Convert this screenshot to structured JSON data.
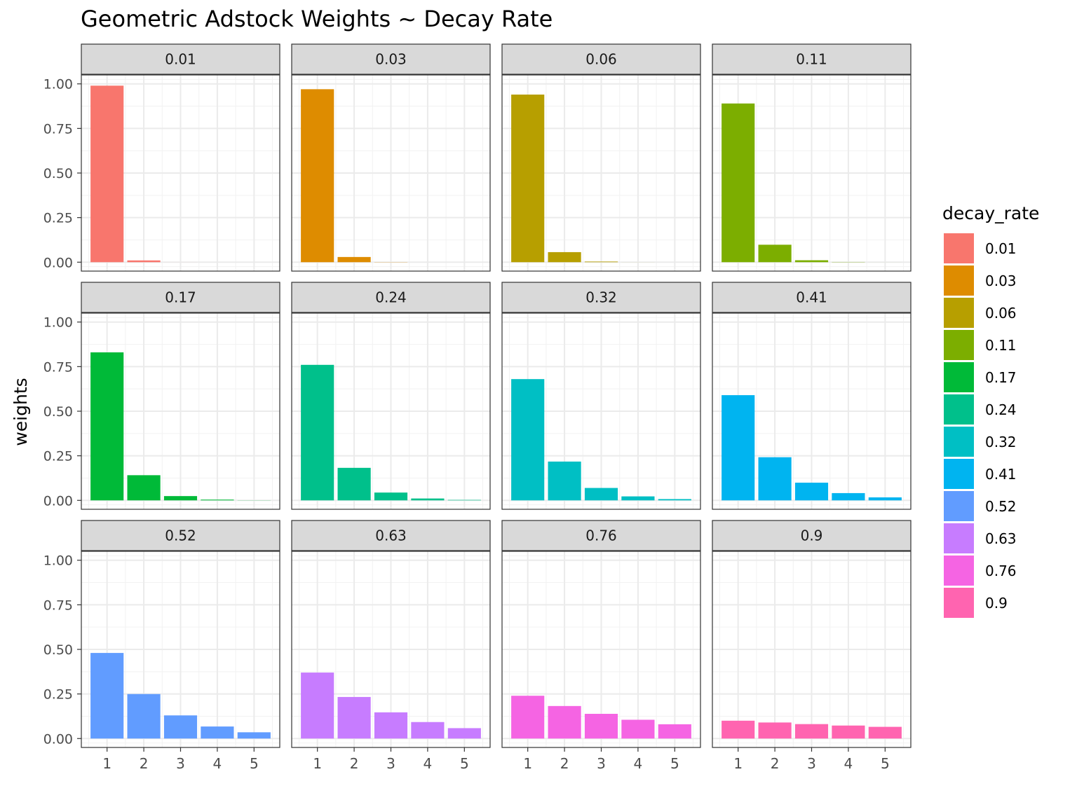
{
  "chart_data": {
    "type": "bar",
    "title": "Geometric Adstock Weights ~ Decay Rate",
    "xlabel": "",
    "ylabel": "weights",
    "categories": [
      "1",
      "2",
      "3",
      "4",
      "5"
    ],
    "ylim": [
      -0.05,
      1.05
    ],
    "yticks": [
      "0.00",
      "0.25",
      "0.50",
      "0.75",
      "1.00"
    ],
    "ytick_values": [
      0,
      0.25,
      0.5,
      0.75,
      1.0
    ],
    "grid": true,
    "legend": {
      "title": "decay_rate",
      "position": "right"
    },
    "facets": [
      {
        "label": "0.01",
        "color": "#F8766D",
        "values": [
          0.99,
          0.0099,
          0.0001,
          0.0,
          0.0
        ]
      },
      {
        "label": "0.03",
        "color": "#DE8C00",
        "values": [
          0.97,
          0.0291,
          0.0009,
          0.0,
          0.0
        ]
      },
      {
        "label": "0.06",
        "color": "#B79F00",
        "values": [
          0.94,
          0.0564,
          0.0034,
          0.0002,
          0.0
        ]
      },
      {
        "label": "0.11",
        "color": "#7CAE00",
        "values": [
          0.89,
          0.0979,
          0.0108,
          0.0012,
          0.0001
        ]
      },
      {
        "label": "0.17",
        "color": "#00BA38",
        "values": [
          0.83,
          0.1411,
          0.024,
          0.0041,
          0.0007
        ]
      },
      {
        "label": "0.24",
        "color": "#00C08B",
        "values": [
          0.76,
          0.1824,
          0.0438,
          0.0105,
          0.0025
        ]
      },
      {
        "label": "0.32",
        "color": "#00BFC4",
        "values": [
          0.68,
          0.2176,
          0.0696,
          0.0223,
          0.0071
        ]
      },
      {
        "label": "0.41",
        "color": "#00B4F0",
        "values": [
          0.59,
          0.2419,
          0.0992,
          0.0407,
          0.0167
        ]
      },
      {
        "label": "0.52",
        "color": "#619CFF",
        "values": [
          0.48,
          0.2496,
          0.1298,
          0.0675,
          0.0351
        ]
      },
      {
        "label": "0.63",
        "color": "#C77CFF",
        "values": [
          0.37,
          0.2331,
          0.1469,
          0.0925,
          0.0583
        ]
      },
      {
        "label": "0.76",
        "color": "#F564E3",
        "values": [
          0.24,
          0.1824,
          0.1386,
          0.1053,
          0.0801
        ]
      },
      {
        "label": "0.9",
        "color": "#FF64B0",
        "values": [
          0.1,
          0.09,
          0.081,
          0.0729,
          0.0656
        ]
      }
    ]
  }
}
